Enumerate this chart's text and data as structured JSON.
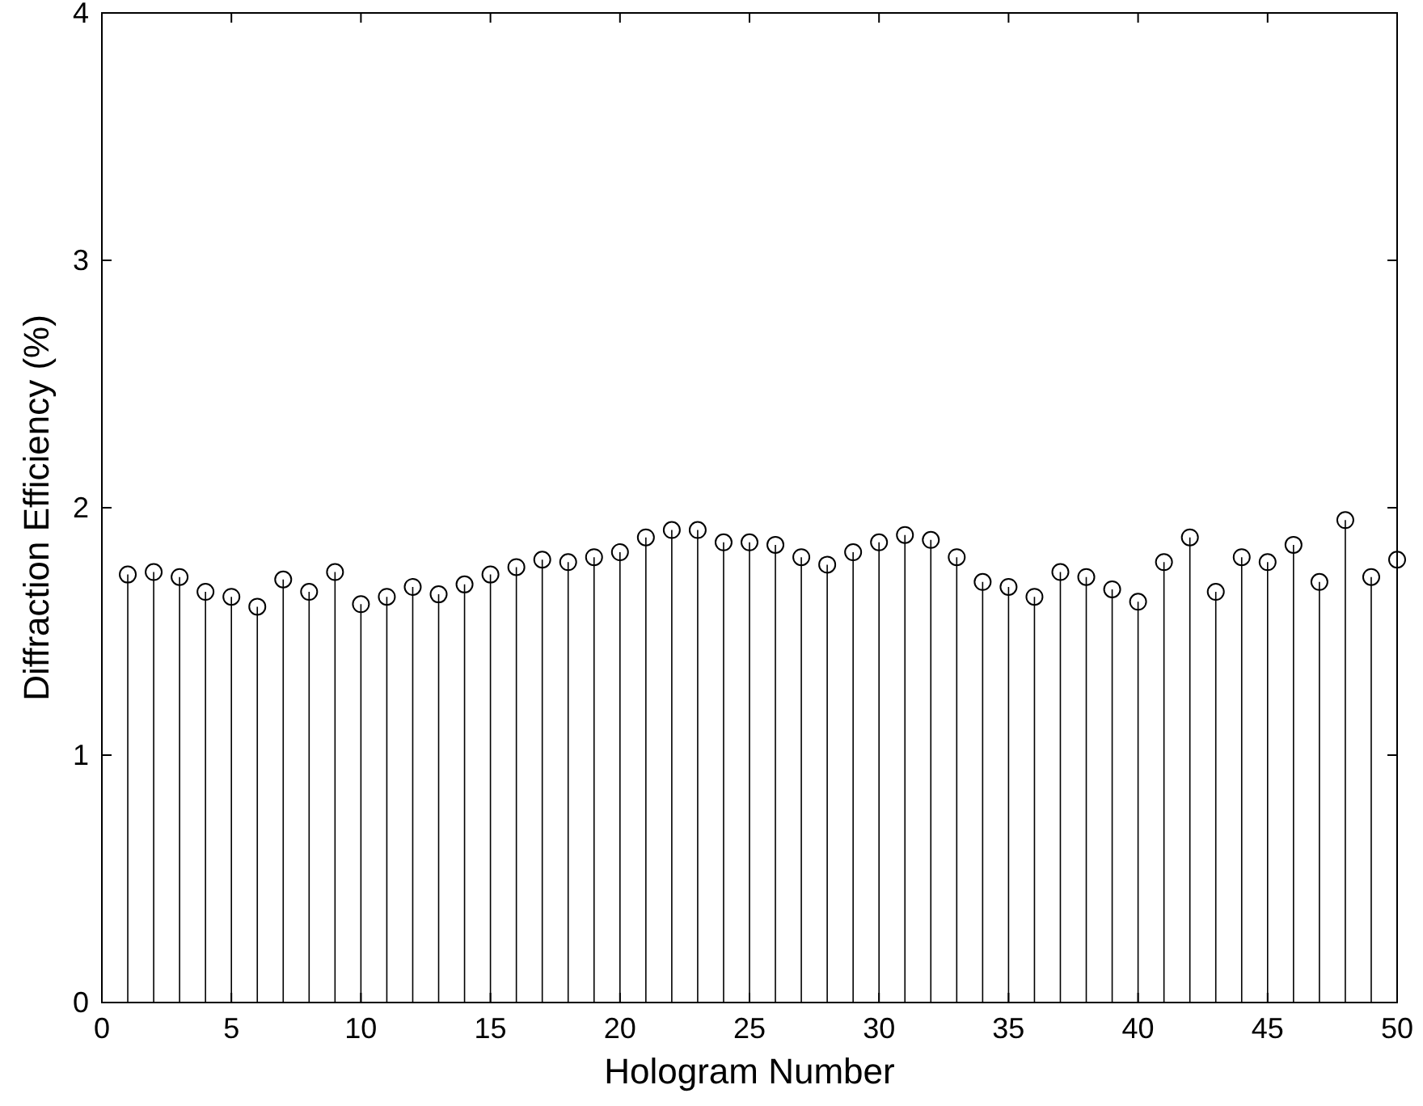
{
  "chart_data": {
    "type": "lollipop",
    "xlabel": "Hologram Number",
    "ylabel": "Diffraction Efficiency (%)",
    "x": [
      1,
      2,
      3,
      4,
      5,
      6,
      7,
      8,
      9,
      10,
      11,
      12,
      13,
      14,
      15,
      16,
      17,
      18,
      19,
      20,
      21,
      22,
      23,
      24,
      25,
      26,
      27,
      28,
      29,
      30,
      31,
      32,
      33,
      34,
      35,
      36,
      37,
      38,
      39,
      40,
      41,
      42,
      43,
      44,
      45,
      46,
      47,
      48,
      49,
      50
    ],
    "values": [
      1.73,
      1.74,
      1.72,
      1.66,
      1.64,
      1.6,
      1.71,
      1.66,
      1.74,
      1.61,
      1.64,
      1.68,
      1.65,
      1.69,
      1.73,
      1.76,
      1.79,
      1.78,
      1.8,
      1.82,
      1.88,
      1.91,
      1.91,
      1.86,
      1.86,
      1.85,
      1.8,
      1.77,
      1.82,
      1.86,
      1.89,
      1.87,
      1.8,
      1.7,
      1.68,
      1.64,
      1.74,
      1.72,
      1.67,
      1.62,
      1.78,
      1.88,
      1.66,
      1.8,
      1.78,
      1.85,
      1.7,
      1.95,
      1.72,
      1.79
    ],
    "color": "#000000",
    "marker": "circle",
    "xlim": [
      0,
      50
    ],
    "xticks": [
      0,
      5,
      10,
      15,
      20,
      25,
      30,
      35,
      40,
      45,
      50
    ],
    "ylim": [
      0,
      4
    ],
    "yticks": [
      0,
      1,
      2,
      3,
      4
    ],
    "grid": false
  }
}
